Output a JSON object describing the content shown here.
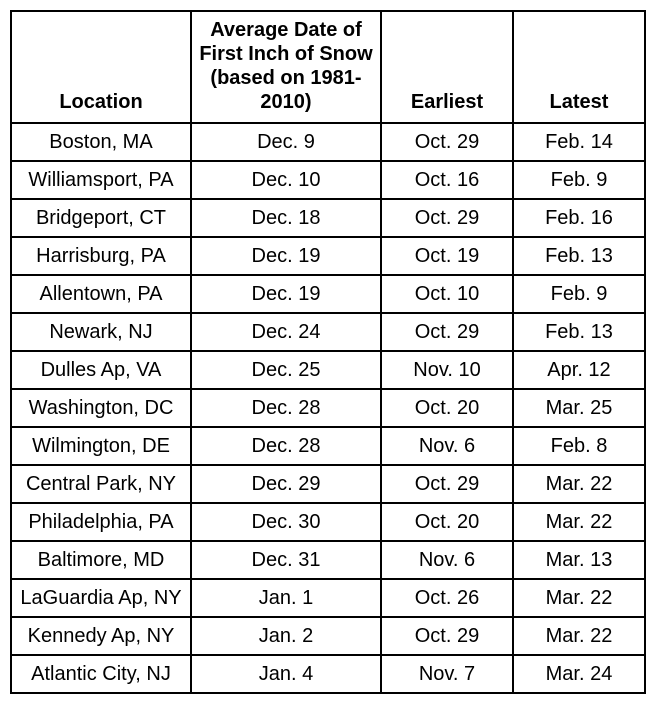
{
  "table": {
    "columns": [
      "Location",
      "Average Date of First Inch of Snow (based on 1981-2010)",
      "Earliest",
      "Latest"
    ],
    "rows": [
      [
        "Boston, MA",
        "Dec. 9",
        "Oct. 29",
        "Feb. 14"
      ],
      [
        "Williamsport, PA",
        "Dec. 10",
        "Oct. 16",
        "Feb. 9"
      ],
      [
        "Bridgeport, CT",
        "Dec. 18",
        "Oct. 29",
        "Feb. 16"
      ],
      [
        "Harrisburg, PA",
        "Dec. 19",
        "Oct. 19",
        "Feb. 13"
      ],
      [
        "Allentown, PA",
        "Dec. 19",
        "Oct. 10",
        "Feb. 9"
      ],
      [
        "Newark, NJ",
        "Dec. 24",
        "Oct. 29",
        "Feb. 13"
      ],
      [
        "Dulles Ap, VA",
        "Dec. 25",
        "Nov. 10",
        "Apr. 12"
      ],
      [
        "Washington, DC",
        "Dec. 28",
        "Oct. 20",
        "Mar. 25"
      ],
      [
        "Wilmington, DE",
        "Dec. 28",
        "Nov. 6",
        "Feb. 8"
      ],
      [
        "Central Park, NY",
        "Dec. 29",
        "Oct. 29",
        "Mar. 22"
      ],
      [
        "Philadelphia, PA",
        "Dec. 30",
        "Oct. 20",
        "Mar. 22"
      ],
      [
        "Baltimore, MD",
        "Dec. 31",
        "Nov. 6",
        "Mar. 13"
      ],
      [
        "LaGuardia Ap, NY",
        "Jan. 1",
        "Oct. 26",
        "Mar. 22"
      ],
      [
        "Kennedy Ap, NY",
        "Jan. 2",
        "Oct. 29",
        "Mar. 22"
      ],
      [
        "Atlantic City, NJ",
        "Jan. 4",
        "Nov. 7",
        "Mar. 24"
      ]
    ],
    "border_color": "#000000",
    "background_color": "#ffffff",
    "fontsize": 20,
    "header_fontweight": "bold"
  }
}
